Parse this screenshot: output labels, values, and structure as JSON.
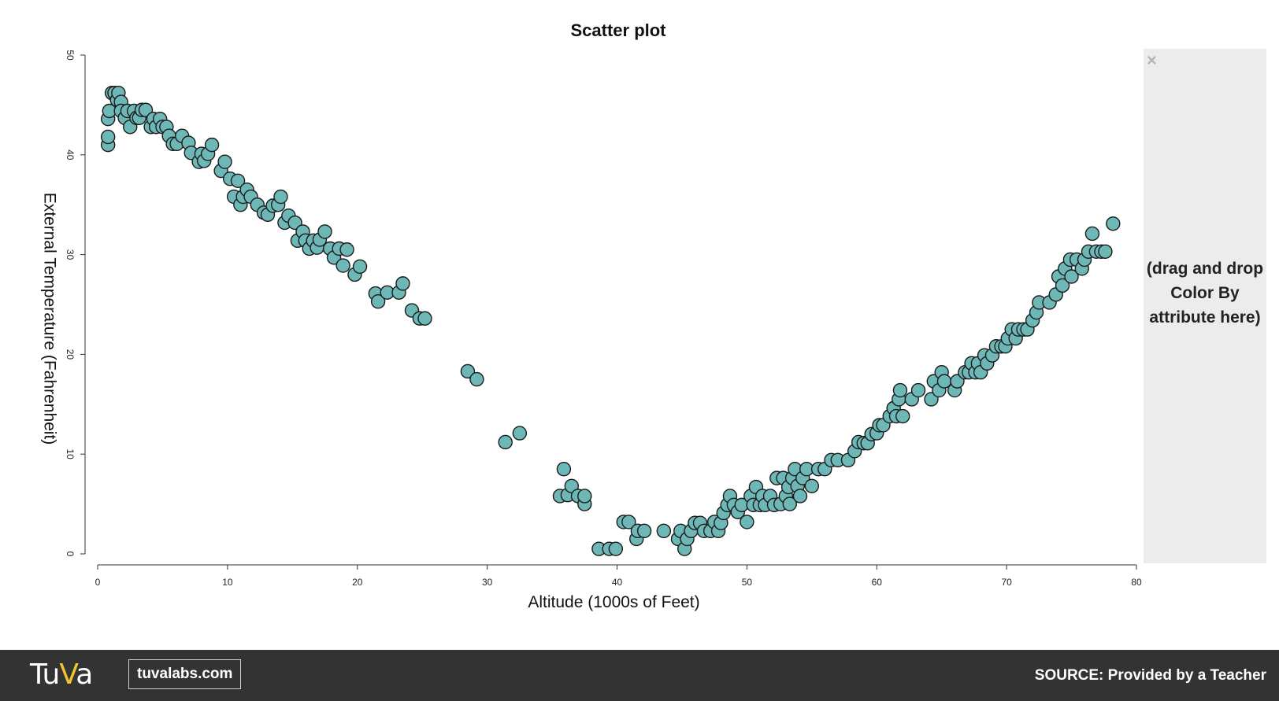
{
  "chart_data": {
    "type": "scatter",
    "title": "Scatter plot",
    "xlabel": "Altitude (1000s of Feet)",
    "ylabel": "External Temperature (Fahrenheit)",
    "xlim": [
      0,
      80
    ],
    "ylim": [
      0,
      50
    ],
    "x_ticks": [
      "0",
      "10",
      "20",
      "30",
      "40",
      "50",
      "60",
      "70",
      "80"
    ],
    "y_ticks": [
      "0",
      "10",
      "20",
      "30",
      "40",
      "50"
    ],
    "marker_color": "#6db7b7",
    "grid": false,
    "points": [
      [
        0.8,
        41.0
      ],
      [
        0.8,
        41.8
      ],
      [
        0.8,
        43.6
      ],
      [
        0.9,
        44.4
      ],
      [
        1.1,
        46.2
      ],
      [
        1.3,
        46.2
      ],
      [
        1.5,
        45.5
      ],
      [
        1.6,
        46.2
      ],
      [
        1.8,
        45.3
      ],
      [
        1.8,
        44.4
      ],
      [
        2.1,
        43.7
      ],
      [
        2.3,
        44.4
      ],
      [
        2.5,
        42.8
      ],
      [
        2.8,
        44.4
      ],
      [
        3.0,
        43.7
      ],
      [
        3.2,
        43.7
      ],
      [
        3.4,
        44.5
      ],
      [
        3.7,
        44.5
      ],
      [
        4.1,
        42.8
      ],
      [
        4.3,
        43.6
      ],
      [
        4.5,
        42.8
      ],
      [
        4.8,
        43.6
      ],
      [
        5.0,
        42.8
      ],
      [
        5.3,
        42.8
      ],
      [
        5.5,
        41.9
      ],
      [
        5.8,
        41.1
      ],
      [
        6.1,
        41.1
      ],
      [
        6.5,
        41.9
      ],
      [
        7.0,
        41.2
      ],
      [
        7.2,
        40.2
      ],
      [
        7.8,
        39.3
      ],
      [
        8.0,
        40.1
      ],
      [
        8.2,
        39.4
      ],
      [
        8.5,
        40.1
      ],
      [
        8.8,
        41.0
      ],
      [
        9.5,
        38.4
      ],
      [
        9.8,
        39.3
      ],
      [
        10.2,
        37.6
      ],
      [
        10.5,
        35.8
      ],
      [
        10.8,
        37.4
      ],
      [
        11.0,
        35.0
      ],
      [
        11.2,
        35.8
      ],
      [
        11.5,
        36.5
      ],
      [
        11.8,
        35.8
      ],
      [
        12.3,
        35.0
      ],
      [
        12.8,
        34.2
      ],
      [
        13.1,
        34.0
      ],
      [
        13.5,
        34.9
      ],
      [
        13.9,
        35.0
      ],
      [
        14.1,
        35.8
      ],
      [
        14.4,
        33.2
      ],
      [
        14.7,
        33.9
      ],
      [
        15.2,
        33.2
      ],
      [
        15.4,
        31.4
      ],
      [
        15.8,
        32.3
      ],
      [
        16.0,
        31.4
      ],
      [
        16.3,
        30.6
      ],
      [
        16.6,
        31.4
      ],
      [
        16.9,
        30.7
      ],
      [
        17.1,
        31.5
      ],
      [
        17.5,
        32.3
      ],
      [
        17.9,
        30.6
      ],
      [
        18.2,
        29.7
      ],
      [
        18.6,
        30.6
      ],
      [
        18.9,
        28.9
      ],
      [
        19.2,
        30.5
      ],
      [
        19.8,
        28.0
      ],
      [
        20.2,
        28.8
      ],
      [
        21.4,
        26.1
      ],
      [
        21.6,
        25.3
      ],
      [
        22.3,
        26.2
      ],
      [
        23.2,
        26.2
      ],
      [
        23.5,
        27.1
      ],
      [
        24.2,
        24.4
      ],
      [
        24.8,
        23.6
      ],
      [
        25.2,
        23.6
      ],
      [
        28.5,
        18.3
      ],
      [
        29.2,
        17.5
      ],
      [
        31.4,
        11.2
      ],
      [
        32.5,
        12.1
      ],
      [
        35.6,
        5.8
      ],
      [
        35.9,
        8.5
      ],
      [
        36.2,
        5.9
      ],
      [
        36.5,
        6.8
      ],
      [
        37.0,
        5.8
      ],
      [
        37.5,
        5.0
      ],
      [
        37.5,
        5.8
      ],
      [
        38.6,
        0.5
      ],
      [
        39.4,
        0.5
      ],
      [
        39.9,
        0.5
      ],
      [
        40.5,
        3.2
      ],
      [
        40.9,
        3.2
      ],
      [
        41.5,
        1.5
      ],
      [
        41.6,
        2.3
      ],
      [
        42.1,
        2.3
      ],
      [
        43.6,
        2.3
      ],
      [
        44.7,
        1.5
      ],
      [
        44.9,
        2.3
      ],
      [
        45.2,
        0.5
      ],
      [
        45.4,
        1.5
      ],
      [
        45.7,
        2.3
      ],
      [
        46.0,
        3.1
      ],
      [
        46.4,
        3.1
      ],
      [
        46.7,
        2.3
      ],
      [
        47.2,
        2.3
      ],
      [
        47.5,
        3.2
      ],
      [
        47.8,
        2.3
      ],
      [
        48.0,
        3.1
      ],
      [
        48.2,
        4.1
      ],
      [
        48.5,
        4.9
      ],
      [
        48.7,
        5.8
      ],
      [
        49.0,
        4.9
      ],
      [
        49.3,
        4.2
      ],
      [
        49.6,
        4.9
      ],
      [
        50.0,
        3.2
      ],
      [
        50.3,
        5.8
      ],
      [
        50.5,
        4.9
      ],
      [
        50.7,
        6.7
      ],
      [
        51.0,
        4.9
      ],
      [
        51.2,
        5.8
      ],
      [
        51.4,
        4.9
      ],
      [
        51.8,
        5.8
      ],
      [
        52.1,
        4.9
      ],
      [
        52.3,
        7.6
      ],
      [
        52.6,
        5.0
      ],
      [
        52.8,
        7.6
      ],
      [
        53.0,
        5.8
      ],
      [
        53.2,
        6.7
      ],
      [
        53.3,
        5.0
      ],
      [
        53.5,
        7.6
      ],
      [
        53.7,
        8.5
      ],
      [
        53.9,
        6.8
      ],
      [
        54.1,
        5.8
      ],
      [
        54.3,
        7.6
      ],
      [
        54.6,
        8.5
      ],
      [
        55.0,
        6.8
      ],
      [
        55.5,
        8.5
      ],
      [
        56.0,
        8.5
      ],
      [
        56.5,
        9.4
      ],
      [
        57.0,
        9.4
      ],
      [
        57.8,
        9.4
      ],
      [
        58.3,
        10.3
      ],
      [
        58.6,
        11.2
      ],
      [
        59.0,
        11.1
      ],
      [
        59.3,
        11.1
      ],
      [
        59.6,
        12.0
      ],
      [
        60.0,
        12.1
      ],
      [
        60.2,
        12.9
      ],
      [
        60.5,
        12.9
      ],
      [
        61.0,
        13.8
      ],
      [
        61.3,
        14.6
      ],
      [
        61.5,
        13.8
      ],
      [
        61.7,
        15.5
      ],
      [
        61.8,
        16.4
      ],
      [
        62.0,
        13.8
      ],
      [
        62.7,
        15.5
      ],
      [
        63.2,
        16.4
      ],
      [
        64.2,
        15.5
      ],
      [
        64.4,
        17.3
      ],
      [
        64.8,
        16.4
      ],
      [
        65.0,
        18.2
      ],
      [
        65.2,
        17.3
      ],
      [
        66.0,
        16.4
      ],
      [
        66.2,
        17.3
      ],
      [
        66.8,
        18.2
      ],
      [
        67.1,
        18.2
      ],
      [
        67.3,
        19.1
      ],
      [
        67.6,
        18.2
      ],
      [
        67.8,
        19.1
      ],
      [
        68.0,
        18.2
      ],
      [
        68.3,
        19.9
      ],
      [
        68.5,
        19.1
      ],
      [
        68.9,
        19.9
      ],
      [
        69.2,
        20.8
      ],
      [
        69.6,
        20.8
      ],
      [
        69.9,
        20.8
      ],
      [
        70.1,
        21.6
      ],
      [
        70.4,
        22.5
      ],
      [
        70.7,
        21.6
      ],
      [
        70.9,
        22.5
      ],
      [
        71.3,
        22.5
      ],
      [
        71.6,
        22.5
      ],
      [
        72.0,
        23.4
      ],
      [
        72.3,
        24.2
      ],
      [
        72.5,
        25.2
      ],
      [
        73.3,
        25.2
      ],
      [
        73.8,
        26.0
      ],
      [
        74.0,
        27.8
      ],
      [
        74.3,
        26.9
      ],
      [
        74.5,
        28.6
      ],
      [
        74.9,
        29.5
      ],
      [
        75.0,
        27.8
      ],
      [
        75.4,
        29.5
      ],
      [
        75.8,
        28.6
      ],
      [
        76.0,
        29.5
      ],
      [
        76.3,
        30.3
      ],
      [
        76.6,
        32.1
      ],
      [
        76.9,
        30.3
      ],
      [
        77.3,
        30.3
      ],
      [
        77.6,
        30.3
      ],
      [
        78.2,
        33.1
      ]
    ]
  },
  "panel": {
    "close_glyph": "×",
    "hint": "(drag and drop Color By attribute here)"
  },
  "footer": {
    "brand": "Tuva",
    "link_text": "tuvalabs.com",
    "source_text": "SOURCE: Provided by a Teacher",
    "background": "#333333",
    "accent": "#f2c230"
  }
}
